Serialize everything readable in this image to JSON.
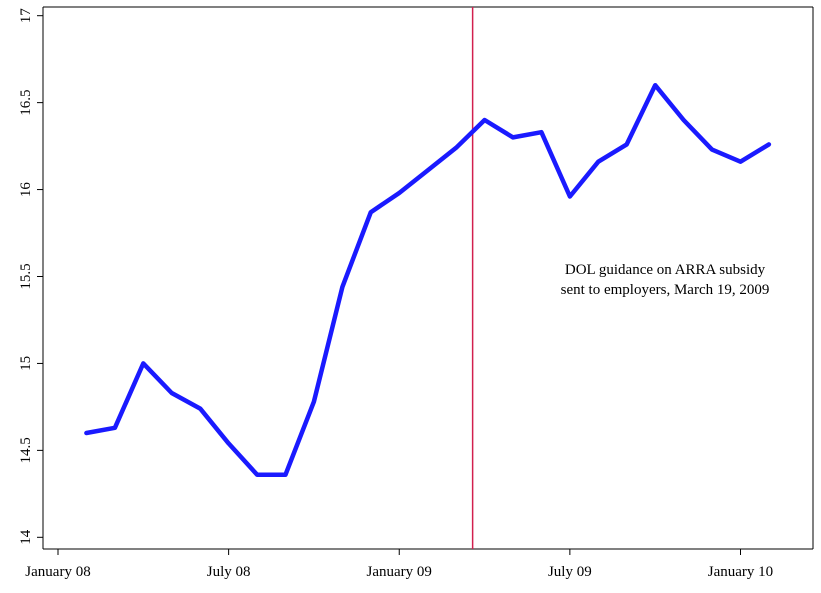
{
  "chart_data": {
    "type": "line",
    "title": "",
    "xlabel": "",
    "ylabel": "",
    "x_dates": [
      "2008-02",
      "2008-03",
      "2008-04",
      "2008-05",
      "2008-06",
      "2008-07",
      "2008-08",
      "2008-09",
      "2008-10",
      "2008-11",
      "2008-12",
      "2009-01",
      "2009-02",
      "2009-03",
      "2009-04",
      "2009-05",
      "2009-06",
      "2009-07",
      "2009-08",
      "2009-09",
      "2009-10",
      "2009-11",
      "2009-12",
      "2010-01",
      "2010-02"
    ],
    "x_tick_dates": [
      "2008-01",
      "2008-07",
      "2009-01",
      "2009-07",
      "2010-01"
    ],
    "x_tick_labels": [
      "January 08",
      "July 08",
      "January 09",
      "July 09",
      "January 10"
    ],
    "xlim": [
      "2008-01",
      "2010-03"
    ],
    "y_ticks": [
      14,
      14.5,
      15,
      15.5,
      16,
      16.5,
      17
    ],
    "y_tick_labels": [
      "14",
      "14.5",
      "15",
      "15.5",
      "16",
      "16.5",
      "17"
    ],
    "ylim": [
      13.95,
      17.05
    ],
    "series": [
      {
        "color": "#1a1aff",
        "values": [
          14.6,
          14.63,
          15.0,
          14.83,
          14.74,
          14.54,
          14.36,
          14.36,
          14.78,
          15.44,
          15.87,
          15.98,
          16.11,
          16.24,
          16.4,
          16.3,
          16.33,
          15.96,
          16.16,
          16.26,
          16.6,
          16.4,
          16.23,
          16.16,
          16.26
        ]
      }
    ],
    "reference_line": {
      "x": "2009-03-19",
      "color": "#d21f4e",
      "label_lines": [
        "DOL guidance on ARRA subsidy",
        "sent to employers, March 19, 2009"
      ]
    },
    "grid": false,
    "legend": "none"
  }
}
